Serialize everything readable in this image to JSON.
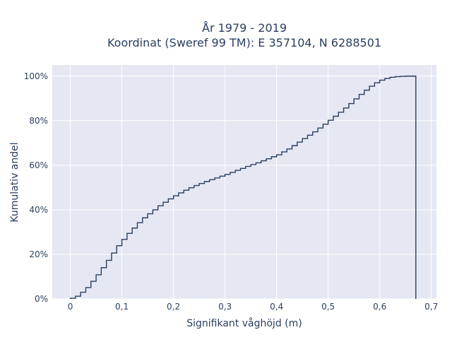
{
  "chart_data": {
    "type": "line",
    "subtype": "cumulative-step",
    "title": "År 1979 - 2019",
    "subtitle": "Koordinat (Sweref 99 TM): E 357104, N 6288501",
    "xlabel": "Signifikant våghöjd (m)",
    "ylabel": "Kumulativ andel",
    "xlim": [
      -0.035,
      0.71
    ],
    "ylim": [
      0,
      1.05
    ],
    "x_ticks": [
      0,
      0.1,
      0.2,
      0.3,
      0.4,
      0.5,
      0.6,
      0.7
    ],
    "x_tick_labels": [
      "0",
      "0,1",
      "0,2",
      "0,3",
      "0,4",
      "0,5",
      "0,6",
      "0,7"
    ],
    "y_ticks": [
      0,
      0.2,
      0.4,
      0.6,
      0.8,
      1.0
    ],
    "y_tick_labels": [
      "0%",
      "20%",
      "40%",
      "60%",
      "80%",
      "100%"
    ],
    "grid": true,
    "plot_background": "#e5e8f2",
    "line_color": "#2a3f5f",
    "x": [
      0,
      0.01,
      0.02,
      0.03,
      0.04,
      0.05,
      0.06,
      0.07,
      0.08,
      0.09,
      0.1,
      0.11,
      0.12,
      0.13,
      0.14,
      0.15,
      0.16,
      0.17,
      0.18,
      0.19,
      0.2,
      0.21,
      0.22,
      0.23,
      0.24,
      0.25,
      0.26,
      0.27,
      0.28,
      0.29,
      0.3,
      0.31,
      0.32,
      0.33,
      0.34,
      0.35,
      0.36,
      0.37,
      0.38,
      0.39,
      0.4,
      0.41,
      0.42,
      0.43,
      0.44,
      0.45,
      0.46,
      0.47,
      0.48,
      0.49,
      0.5,
      0.51,
      0.52,
      0.53,
      0.54,
      0.55,
      0.56,
      0.57,
      0.58,
      0.59,
      0.6,
      0.61,
      0.62,
      0.63,
      0.64,
      0.65,
      0.66,
      0.67
    ],
    "y": [
      0.003,
      0.012,
      0.03,
      0.051,
      0.079,
      0.108,
      0.14,
      0.173,
      0.206,
      0.239,
      0.267,
      0.294,
      0.318,
      0.342,
      0.364,
      0.382,
      0.4,
      0.418,
      0.434,
      0.449,
      0.463,
      0.476,
      0.488,
      0.499,
      0.509,
      0.518,
      0.527,
      0.535,
      0.543,
      0.551,
      0.559,
      0.568,
      0.577,
      0.586,
      0.595,
      0.603,
      0.611,
      0.62,
      0.629,
      0.638,
      0.647,
      0.66,
      0.673,
      0.688,
      0.704,
      0.72,
      0.735,
      0.75,
      0.767,
      0.784,
      0.802,
      0.82,
      0.838,
      0.857,
      0.877,
      0.898,
      0.918,
      0.937,
      0.955,
      0.97,
      0.982,
      0.99,
      0.995,
      0.998,
      0.999,
      1.0,
      1.0,
      1.0
    ]
  }
}
